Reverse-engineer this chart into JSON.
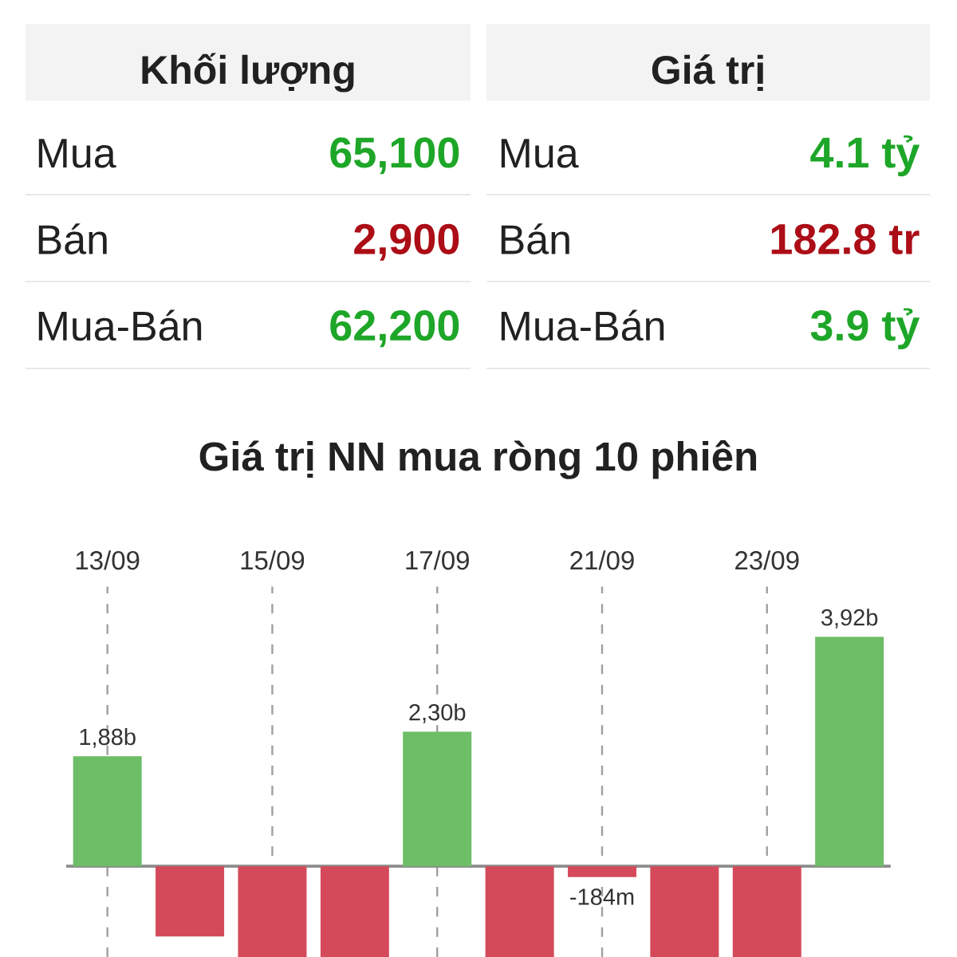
{
  "chart_data": [
    {
      "type": "other",
      "annotations": [
        "Khối lượng",
        "Giá trị",
        "Mua",
        "65,100",
        "Mua",
        "4.1 tỷ",
        "Bán",
        "2,900",
        "Bán",
        "182.8 tr",
        "Mua-Bán",
        "62,200",
        "Mua-Bán",
        "3.9 tỷ"
      ],
      "colors": [
        "#212121",
        "#212121",
        "#212121",
        "#1ea628",
        "#212121",
        "#1ea628",
        "#212121",
        "#ac0d16",
        "#212121",
        "#ac0d16",
        "#212121",
        "#1ea628",
        "#212121",
        "#1ea628"
      ]
    },
    {
      "type": "bar",
      "title": "Giá trị NN mua ròng 10 phiên",
      "categories": [
        "13/09",
        null,
        "15/09",
        null,
        "17/09",
        null,
        "21/09",
        null,
        "23/09",
        null
      ],
      "values": [
        1880000000,
        -1200000000,
        -1550000000,
        -1550000000,
        2300000000,
        -1550000000,
        -184000000,
        -1550000000,
        -1550000000,
        3920000000
      ],
      "colors": [
        "#6dbe66",
        "#d44a5a",
        "#d44a5a",
        "#d44a5a",
        "#6dbe66",
        "#d44a5a",
        "#d44a5a",
        "#d44a5a",
        "#d44a5a",
        "#6dbe66"
      ],
      "value_labels": [
        "1,88b",
        null,
        null,
        null,
        "2,30b",
        null,
        "-184m",
        null,
        null,
        "3,92b"
      ],
      "ylim": [
        -1550000000,
        4780000000
      ],
      "grid": "x",
      "tick_labels": "x"
    }
  ]
}
